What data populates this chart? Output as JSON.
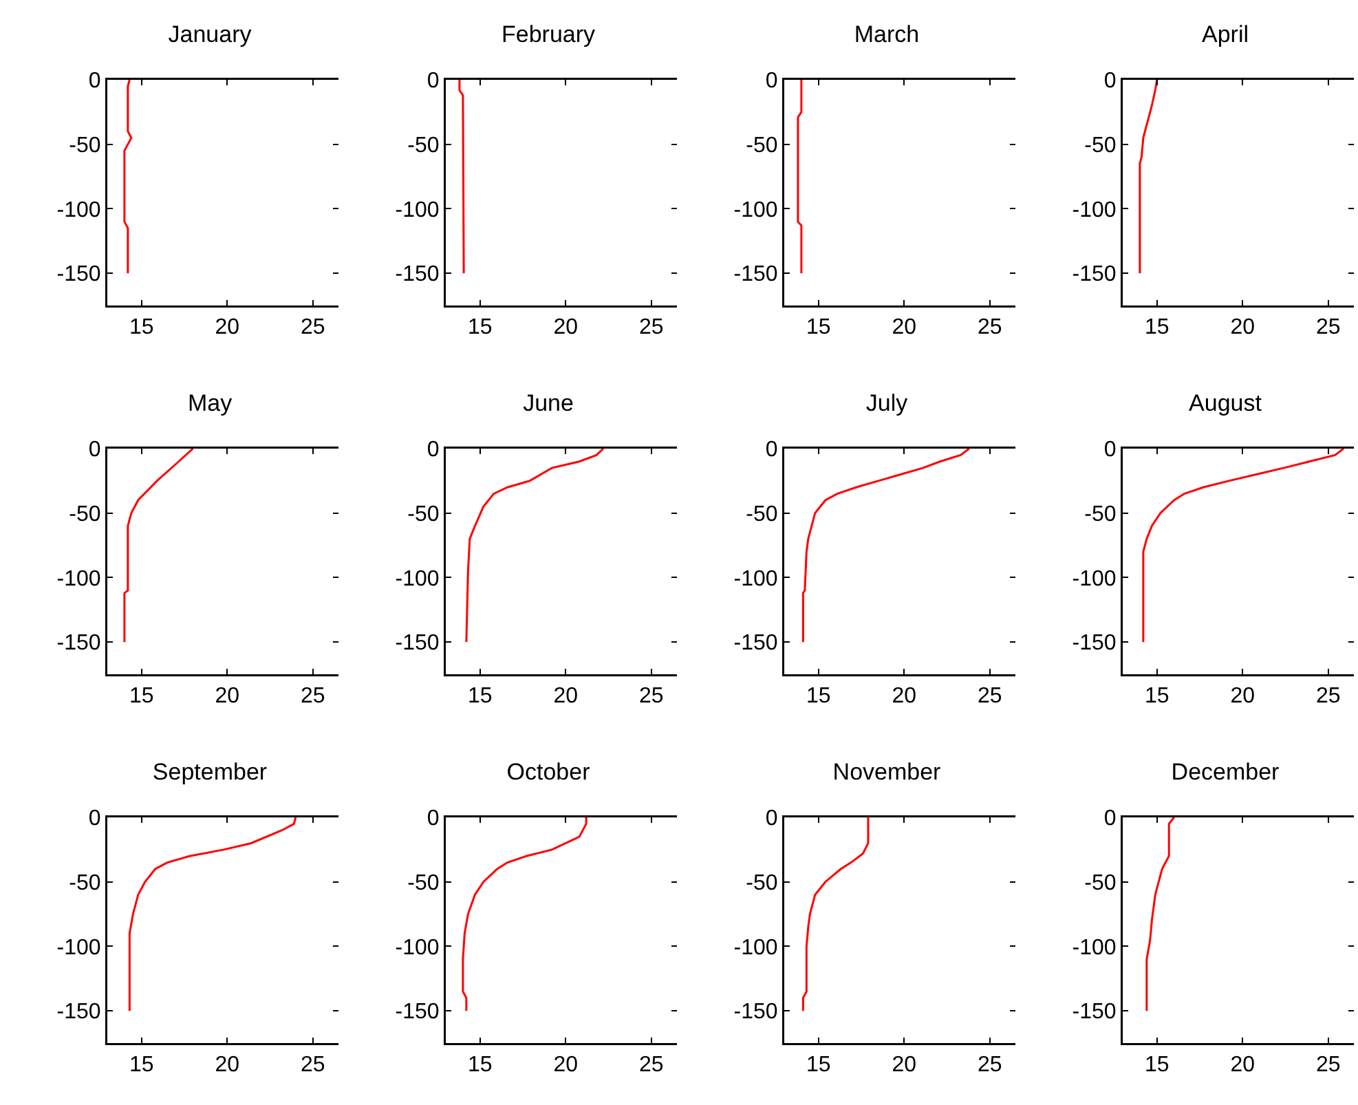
{
  "chart_data": [
    {
      "type": "line",
      "title": "January",
      "xlim": [
        13,
        26.5
      ],
      "xticks": [
        15,
        20,
        25
      ],
      "ylim": [
        -175,
        0
      ],
      "yticks": [
        0,
        -50,
        -100,
        -150
      ],
      "series": [
        {
          "color": "#ff0000",
          "x": [
            14.3,
            14.2,
            14.2,
            14.4,
            14.0,
            14.0,
            14.2,
            14.2
          ],
          "values": [
            0,
            -5,
            -40,
            -45,
            -55,
            -110,
            -115,
            -150
          ]
        }
      ]
    },
    {
      "type": "line",
      "title": "February",
      "xlim": [
        13,
        26.5
      ],
      "xticks": [
        15,
        20,
        25
      ],
      "ylim": [
        -175,
        0
      ],
      "yticks": [
        0,
        -50,
        -100,
        -150
      ],
      "series": [
        {
          "color": "#ff0000",
          "x": [
            13.8,
            13.8,
            14.0,
            14.05
          ],
          "values": [
            0,
            -8,
            -12,
            -150
          ]
        }
      ]
    },
    {
      "type": "line",
      "title": "March",
      "xlim": [
        13,
        26.5
      ],
      "xticks": [
        15,
        20,
        25
      ],
      "ylim": [
        -175,
        0
      ],
      "yticks": [
        0,
        -50,
        -100,
        -150
      ],
      "series": [
        {
          "color": "#ff0000",
          "x": [
            14.0,
            14.0,
            13.8,
            13.8,
            14.0,
            14.0
          ],
          "values": [
            0,
            -25,
            -29,
            -110,
            -113,
            -150
          ]
        }
      ]
    },
    {
      "type": "line",
      "title": "April",
      "xlim": [
        13,
        26.5
      ],
      "xticks": [
        15,
        20,
        25
      ],
      "ylim": [
        -175,
        0
      ],
      "yticks": [
        0,
        -50,
        -100,
        -150
      ],
      "series": [
        {
          "color": "#ff0000",
          "x": [
            15.0,
            14.9,
            14.7,
            14.4,
            14.2,
            14.1,
            14.0,
            14.0
          ],
          "values": [
            0,
            -8,
            -20,
            -35,
            -45,
            -60,
            -65,
            -150
          ]
        }
      ]
    },
    {
      "type": "line",
      "title": "May",
      "xlim": [
        13,
        26.5
      ],
      "xticks": [
        15,
        20,
        25
      ],
      "ylim": [
        -175,
        0
      ],
      "yticks": [
        0,
        -50,
        -100,
        -150
      ],
      "series": [
        {
          "color": "#ff0000",
          "x": [
            18.0,
            17.0,
            15.9,
            14.8,
            14.4,
            14.2,
            14.2,
            14.0,
            14.0
          ],
          "values": [
            0,
            -12,
            -25,
            -40,
            -50,
            -60,
            -110,
            -112,
            -150
          ]
        }
      ]
    },
    {
      "type": "line",
      "title": "June",
      "xlim": [
        13,
        26.5
      ],
      "xticks": [
        15,
        20,
        25
      ],
      "ylim": [
        -175,
        0
      ],
      "yticks": [
        0,
        -50,
        -100,
        -150
      ],
      "series": [
        {
          "color": "#ff0000",
          "x": [
            22.2,
            21.8,
            20.8,
            19.2,
            17.9,
            16.6,
            15.8,
            15.2,
            14.7,
            14.4,
            14.3,
            14.2
          ],
          "values": [
            0,
            -5,
            -10,
            -15,
            -25,
            -30,
            -35,
            -45,
            -60,
            -70,
            -95,
            -150
          ]
        }
      ]
    },
    {
      "type": "line",
      "title": "July",
      "xlim": [
        13,
        26.5
      ],
      "xticks": [
        15,
        20,
        25
      ],
      "ylim": [
        -175,
        0
      ],
      "yticks": [
        0,
        -50,
        -100,
        -150
      ],
      "series": [
        {
          "color": "#ff0000",
          "x": [
            23.8,
            23.3,
            22.1,
            21.1,
            19.8,
            18.5,
            17.2,
            16.1,
            15.4,
            14.8,
            14.6,
            14.4,
            14.3,
            14.2,
            14.1,
            14.1
          ],
          "values": [
            0,
            -5,
            -10,
            -15,
            -20,
            -25,
            -30,
            -35,
            -40,
            -50,
            -60,
            -70,
            -80,
            -110,
            -112,
            -150
          ]
        }
      ]
    },
    {
      "type": "line",
      "title": "August",
      "xlim": [
        13,
        26.5
      ],
      "xticks": [
        15,
        20,
        25
      ],
      "ylim": [
        -175,
        0
      ],
      "yticks": [
        0,
        -50,
        -100,
        -150
      ],
      "series": [
        {
          "color": "#ff0000",
          "x": [
            25.9,
            25.4,
            23.9,
            22.4,
            20.8,
            19.2,
            17.7,
            16.6,
            16.0,
            15.2,
            14.7,
            14.4,
            14.2,
            14.2
          ],
          "values": [
            0,
            -5,
            -10,
            -15,
            -20,
            -25,
            -30,
            -35,
            -40,
            -50,
            -60,
            -70,
            -80,
            -150
          ]
        }
      ]
    },
    {
      "type": "line",
      "title": "September",
      "xlim": [
        13,
        26.5
      ],
      "xticks": [
        15,
        20,
        25
      ],
      "ylim": [
        -175,
        0
      ],
      "yticks": [
        0,
        -50,
        -100,
        -150
      ],
      "series": [
        {
          "color": "#ff0000",
          "x": [
            24.0,
            23.9,
            23.2,
            21.4,
            19.8,
            17.8,
            16.5,
            15.8,
            15.2,
            14.8,
            14.5,
            14.3,
            14.3
          ],
          "values": [
            0,
            -5,
            -10,
            -20,
            -25,
            -30,
            -35,
            -40,
            -50,
            -60,
            -75,
            -90,
            -150
          ]
        }
      ]
    },
    {
      "type": "line",
      "title": "October",
      "xlim": [
        13,
        26.5
      ],
      "xticks": [
        15,
        20,
        25
      ],
      "ylim": [
        -175,
        0
      ],
      "yticks": [
        0,
        -50,
        -100,
        -150
      ],
      "series": [
        {
          "color": "#ff0000",
          "x": [
            21.2,
            21.2,
            20.8,
            19.2,
            17.7,
            16.6,
            16.0,
            15.2,
            14.7,
            14.3,
            14.1,
            14.0,
            14.0,
            14.2,
            14.2
          ],
          "values": [
            0,
            -5,
            -15,
            -25,
            -30,
            -35,
            -40,
            -50,
            -60,
            -75,
            -90,
            -110,
            -135,
            -140,
            -150
          ]
        }
      ]
    },
    {
      "type": "line",
      "title": "November",
      "xlim": [
        13,
        26.5
      ],
      "xticks": [
        15,
        20,
        25
      ],
      "ylim": [
        -175,
        0
      ],
      "yticks": [
        0,
        -50,
        -100,
        -150
      ],
      "series": [
        {
          "color": "#ff0000",
          "x": [
            17.9,
            17.9,
            17.6,
            16.9,
            16.3,
            15.4,
            14.8,
            14.5,
            14.4,
            14.3,
            14.3,
            14.1,
            14.1
          ],
          "values": [
            0,
            -20,
            -28,
            -35,
            -40,
            -50,
            -60,
            -75,
            -85,
            -100,
            -135,
            -140,
            -150
          ]
        }
      ]
    },
    {
      "type": "line",
      "title": "December",
      "xlim": [
        13,
        26.5
      ],
      "xticks": [
        15,
        20,
        25
      ],
      "ylim": [
        -175,
        0
      ],
      "yticks": [
        0,
        -50,
        -100,
        -150
      ],
      "series": [
        {
          "color": "#ff0000",
          "x": [
            16.0,
            15.7,
            15.7,
            15.3,
            15.1,
            14.9,
            14.7,
            14.6,
            14.4,
            14.4
          ],
          "values": [
            0,
            -5,
            -30,
            -40,
            -50,
            -60,
            -80,
            -95,
            -110,
            -150
          ]
        }
      ]
    }
  ]
}
